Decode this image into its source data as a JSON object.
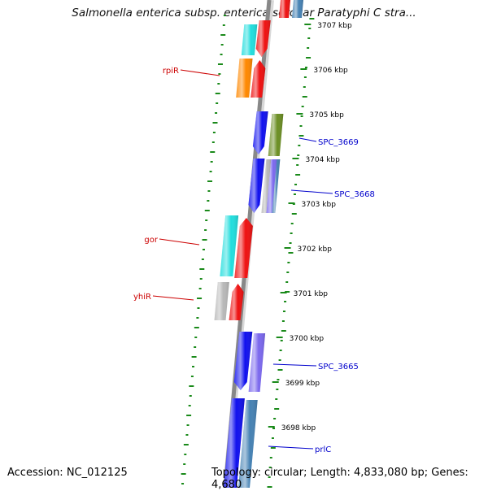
{
  "title": "Salmonella enterica subsp. enterica serovar Paratyphi C stra...",
  "accession": "Accession: NC_012125",
  "topology": "Topology: circular; Length: 4,833,080 bp; Genes: 4,680",
  "ticks": [
    {
      "label": "3707 kbp"
    },
    {
      "label": "3706 kbp"
    },
    {
      "label": "3705 kbp"
    },
    {
      "label": "3704 kbp"
    },
    {
      "label": "3703 kbp"
    },
    {
      "label": "3702 kbp"
    },
    {
      "label": "3701 kbp"
    },
    {
      "label": "3700 kbp"
    },
    {
      "label": "3699 kbp"
    },
    {
      "label": "3698 kbp"
    }
  ],
  "gene_labels": [
    {
      "label": "rpiR",
      "strand": "left",
      "color": "#cc0000"
    },
    {
      "label": "gor",
      "strand": "left",
      "color": "#cc0000"
    },
    {
      "label": "yhiR",
      "strand": "left",
      "color": "#cc0000"
    },
    {
      "label": "SPC_3669",
      "strand": "right",
      "color": "#0000cc"
    },
    {
      "label": "SPC_3668",
      "strand": "right",
      "color": "#0000cc"
    },
    {
      "label": "SPC_3665",
      "strand": "right",
      "color": "#0000cc"
    },
    {
      "label": "prlC",
      "strand": "right",
      "color": "#0000cc"
    }
  ],
  "colors": {
    "backbone": "#8a8a8a",
    "dots": "#1a8a1a",
    "red": "#ee1111",
    "blue": "#1111ee",
    "cyan": "#22dddd",
    "orange": "#ff8800",
    "olive": "#6b8e23",
    "lavender": "#7b68ee",
    "steel": "#4682b4",
    "grey": "#b8b8b8"
  }
}
